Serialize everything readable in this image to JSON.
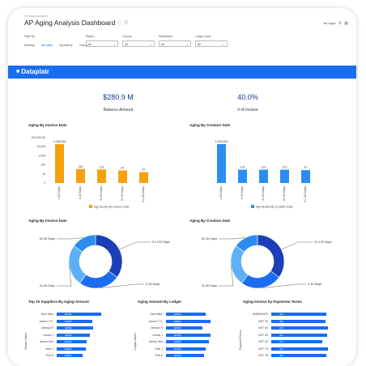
{
  "breadcrumb": "Financial Analytics",
  "title": "AP Aging Analysis Dashboard",
  "user": "Nik Jagan",
  "filters": {
    "label": "Filter By",
    "periods": [
      "Weekly",
      "Monthly",
      "Quarterly",
      "Yearly"
    ],
    "active_period": "Monthly",
    "dropdowns": [
      {
        "label": "Region",
        "value": "All"
      },
      {
        "label": "Country",
        "value": "All"
      },
      {
        "label": "Department",
        "value": "All"
      },
      {
        "label": "Ledger name",
        "value": "All"
      }
    ]
  },
  "brand": "Dataplatr",
  "kpis": [
    {
      "value": "$280.9 M",
      "label": "Balance Amount"
    },
    {
      "value": "40.0%",
      "label": "# of Invoice"
    }
  ],
  "colors": {
    "orange": "#f5a10d",
    "blue": "#2b8df0",
    "dark_blue": "#1a3fb8",
    "mid_blue": "#1a6cf0",
    "light_blue": "#5cb0f5"
  },
  "charts": {
    "invoice_bar_title": "Aging By Invoice Date",
    "creation_bar_title": "Aging By Creation Date",
    "invoice_donut_title": "Aging By Invoice Date",
    "creation_donut_title": "Aging By Creation Date",
    "top_suppliers_title": "Top 10 Suppliers By Aging Amount",
    "ledger_title": "Aging Amount By Ledger",
    "payment_terms_title": "Aging Invoice by Payments Terms"
  },
  "chart_data": [
    {
      "type": "bar",
      "title": "Aging By Invoice Date",
      "categories": [
        ">120 Days",
        "0-30 Days",
        "31-60 Days",
        "61-90 Days",
        "91-120 Days"
      ],
      "values": [
        1005048,
        143,
        123,
        87,
        47
      ],
      "value_labels": [
        "1,005,048",
        "143",
        "123",
        "87",
        "47"
      ],
      "y_scale": "log",
      "y_ticks": [
        "100,000,00",
        "10,000",
        "1,000",
        "100",
        "10",
        "1"
      ],
      "legend": "Age Bucket By Invoice Date",
      "color": "#f5a10d"
    },
    {
      "type": "bar",
      "title": "Aging By Creation Date",
      "categories": [
        ">120 Days",
        "0-30 Days",
        "31-60 Days",
        "61-90 Days",
        "91-120 Days"
      ],
      "values": [
        1012000,
        114,
        113,
        113,
        97
      ],
      "value_labels": [
        "1,012,000",
        "114",
        "113",
        "113",
        "97"
      ],
      "y_scale": "log",
      "legend": "Age Bucket By Creation Date",
      "color": "#2b8df0"
    },
    {
      "type": "pie",
      "title": "Aging By Invoice Date",
      "categories": [
        "91-120 Days",
        "0-30 Days",
        "31-60 Days",
        "61-90 Days"
      ],
      "values": [
        35,
        25,
        25,
        15
      ]
    },
    {
      "type": "pie",
      "title": "Aging By Creation Date",
      "categories": [
        "91-120 Days",
        "0-30 Days",
        "31-60 Days",
        "61-90 Days"
      ],
      "values": [
        35,
        25,
        25,
        15
      ]
    },
    {
      "type": "bar",
      "title": "Top 10 Suppliers By Aging Amount",
      "ylabel": "Vendor Name",
      "categories": [
        "Sam Mike",
        "James T.H.",
        "Jessica R",
        "Carlos J",
        "Jimmy Sen",
        "Nick J",
        "Tina S"
      ],
      "value_labels": [
        "$610M",
        "$490M",
        "$495M",
        "$460M",
        "$410M",
        "$400M",
        "$360M"
      ],
      "values": [
        610,
        490,
        495,
        460,
        410,
        400,
        360
      ]
    },
    {
      "type": "bar",
      "title": "Aging Amount By Ledger",
      "ylabel": "Ledger Name",
      "categories": [
        "Sam Mike",
        "James T.H.",
        "Jessica R",
        "Carlos J",
        "Jimmy Sen",
        "Nick J",
        "Tina S"
      ],
      "value_labels": [
        "$250M",
        "$280M",
        "$230M",
        "$278M",
        "$269M",
        "$249M",
        "$239M"
      ],
      "values": [
        250,
        280,
        230,
        278,
        269,
        249,
        239
      ]
    },
    {
      "type": "bar",
      "title": "Aging Invoice by Payments Terms",
      "ylabel": "Payment Terms",
      "categories": [
        "IMMEDIATE",
        "NET 30",
        "NET 60",
        "NET 45",
        "NET 90",
        "NET 75",
        "NET 15"
      ],
      "value_labels": [
        "400",
        "390",
        "410",
        "405",
        "370",
        "410",
        "400"
      ],
      "values": [
        400,
        390,
        410,
        405,
        370,
        410,
        400
      ]
    }
  ]
}
